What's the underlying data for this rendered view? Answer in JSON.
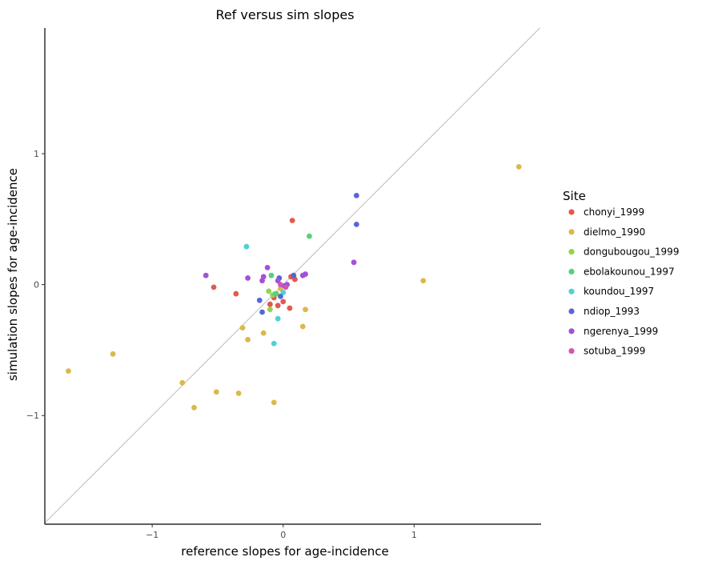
{
  "chart_data": {
    "type": "scatter",
    "title": "Ref versus sim slopes",
    "xlabel": "reference slopes for age-incidence",
    "ylabel": "simulation slopes for age-incidence",
    "xlim": [
      -1.82,
      1.97
    ],
    "ylim": [
      -1.83,
      1.96
    ],
    "xticks": [
      -1,
      0,
      1
    ],
    "yticks": [
      -1,
      0,
      1
    ],
    "xtick_labels": [
      "−1",
      "0",
      "1"
    ],
    "ytick_labels": [
      "−1",
      "0",
      "1"
    ],
    "grid": false,
    "reference_line": "y = x",
    "legend": {
      "title": "Site",
      "position": "right"
    },
    "series": [
      {
        "name": "chonyi_1999",
        "color": "#e05a4e",
        "points": [
          [
            0.07,
            0.49
          ],
          [
            -0.53,
            -0.02
          ],
          [
            -0.36,
            -0.07
          ],
          [
            0.05,
            -0.18
          ],
          [
            0.09,
            0.04
          ],
          [
            -0.07,
            -0.1
          ],
          [
            -0.04,
            -0.16
          ],
          [
            0.0,
            -0.13
          ],
          [
            -0.1,
            -0.15
          ],
          [
            0.06,
            0.06
          ]
        ]
      },
      {
        "name": "dielmo_1990",
        "color": "#dbb84a",
        "points": [
          [
            1.8,
            0.9
          ],
          [
            1.07,
            0.03
          ],
          [
            -1.64,
            -0.66
          ],
          [
            -1.3,
            -0.53
          ],
          [
            -0.77,
            -0.75
          ],
          [
            -0.68,
            -0.94
          ],
          [
            -0.51,
            -0.82
          ],
          [
            -0.34,
            -0.83
          ],
          [
            -0.07,
            -0.9
          ],
          [
            -0.27,
            -0.42
          ],
          [
            -0.31,
            -0.33
          ],
          [
            -0.15,
            -0.37
          ],
          [
            0.15,
            -0.32
          ],
          [
            0.17,
            -0.19
          ],
          [
            -0.02,
            -0.03
          ]
        ]
      },
      {
        "name": "dongubougou_1999",
        "color": "#93d34f",
        "points": [
          [
            -0.11,
            -0.05
          ],
          [
            -0.08,
            -0.08
          ],
          [
            -0.1,
            -0.19
          ],
          [
            -0.05,
            -0.07
          ]
        ]
      },
      {
        "name": "ebolakounou_1997",
        "color": "#57d17a",
        "points": [
          [
            0.2,
            0.37
          ],
          [
            -0.09,
            0.07
          ],
          [
            -0.06,
            -0.07
          ]
        ]
      },
      {
        "name": "koundou_1997",
        "color": "#4fd1d3",
        "points": [
          [
            -0.28,
            0.29
          ],
          [
            -0.07,
            -0.45
          ],
          [
            -0.04,
            -0.26
          ],
          [
            0.0,
            -0.06
          ]
        ]
      },
      {
        "name": "ndiop_1993",
        "color": "#5667d9",
        "points": [
          [
            0.56,
            0.68
          ],
          [
            0.56,
            0.46
          ],
          [
            -0.18,
            -0.12
          ],
          [
            -0.16,
            -0.21
          ],
          [
            -0.03,
            0.05
          ],
          [
            -0.02,
            -0.09
          ],
          [
            0.01,
            -0.01
          ],
          [
            0.08,
            0.07
          ]
        ]
      },
      {
        "name": "ngerenya_1999",
        "color": "#a251d8",
        "points": [
          [
            0.54,
            0.17
          ],
          [
            -0.59,
            0.07
          ],
          [
            -0.27,
            0.05
          ],
          [
            -0.15,
            0.06
          ],
          [
            -0.16,
            0.03
          ],
          [
            -0.12,
            0.13
          ],
          [
            0.15,
            0.07
          ],
          [
            0.17,
            0.08
          ],
          [
            0.03,
            0.0
          ],
          [
            -0.04,
            0.03
          ]
        ]
      },
      {
        "name": "sotuba_1999",
        "color": "#d455b4",
        "points": [
          [
            0.02,
            -0.02
          ],
          [
            -0.02,
            0.0
          ]
        ]
      }
    ]
  }
}
